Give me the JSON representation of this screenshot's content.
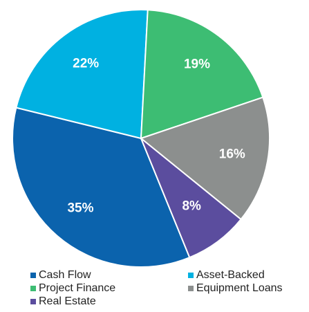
{
  "chart_data": {
    "type": "pie",
    "categories": [
      "Cash Flow",
      "Asset-Backed",
      "Project Finance",
      "Equipment Loans",
      "Real Estate"
    ],
    "values": [
      35,
      22,
      19,
      16,
      8
    ],
    "value_labels": [
      "35%",
      "22%",
      "19%",
      "16%",
      "8%"
    ],
    "colors": [
      "#0b63ad",
      "#00b1e1",
      "#3dbd73",
      "#8c8f8e",
      "#5b4d9e"
    ],
    "legend": "bottom"
  }
}
